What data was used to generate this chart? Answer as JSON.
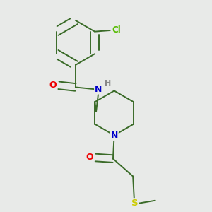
{
  "background_color": "#e8eae8",
  "bond_color": "#3a6b28",
  "atom_colors": {
    "O": "#ee0000",
    "N": "#0000cc",
    "Cl": "#55bb00",
    "S": "#cccc00",
    "H": "#888888"
  },
  "bond_width": 1.4,
  "figsize": [
    3.0,
    3.0
  ],
  "dpi": 100
}
